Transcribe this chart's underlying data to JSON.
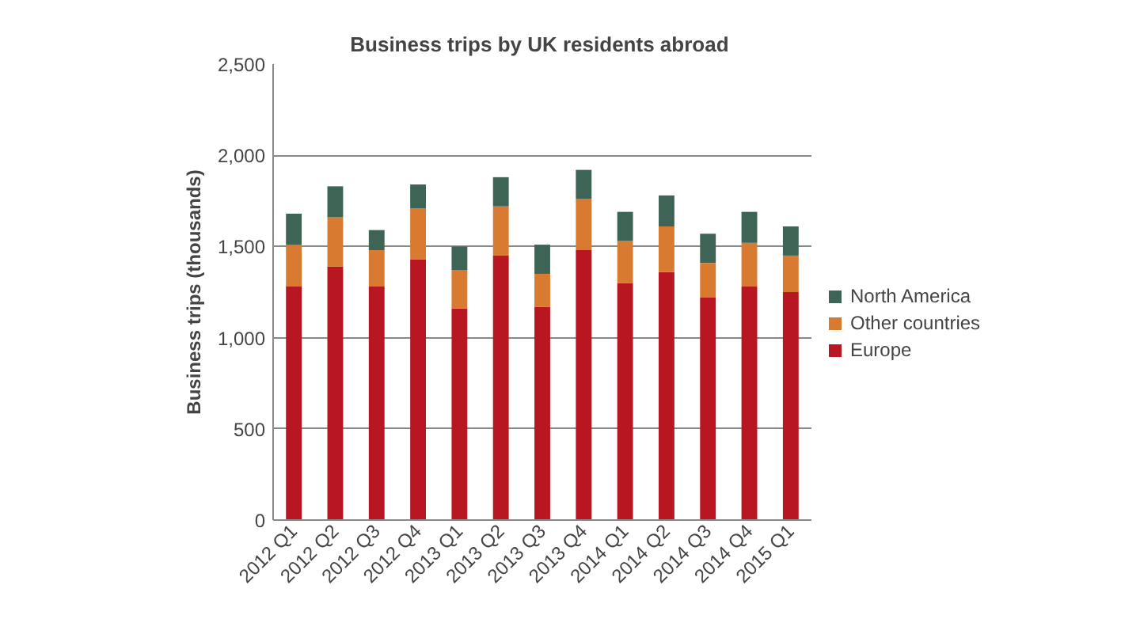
{
  "chart_data": {
    "type": "bar",
    "title": "Business trips  by UK residents abroad",
    "ylabel": "Business trips (thousands)",
    "categories": [
      "2012 Q1",
      "2012 Q2",
      "2012 Q3",
      "2012 Q4",
      "2013 Q1",
      "2013 Q2",
      "2013 Q3",
      "2013 Q4",
      "2014 Q1",
      "2014 Q2",
      "2014 Q3",
      "2014 Q4",
      "2015 Q1"
    ],
    "stacked": true,
    "series": [
      {
        "name": "Europe",
        "color": "#b81722",
        "values": [
          1280,
          1390,
          1280,
          1430,
          1160,
          1450,
          1170,
          1480,
          1300,
          1360,
          1220,
          1280,
          1250
        ]
      },
      {
        "name": "Other countries",
        "color": "#d97a31",
        "values": [
          230,
          270,
          200,
          280,
          210,
          270,
          180,
          280,
          230,
          250,
          190,
          240,
          200
        ]
      },
      {
        "name": "North America",
        "color": "#3e6455",
        "values": [
          170,
          170,
          110,
          130,
          130,
          160,
          160,
          160,
          160,
          170,
          160,
          170,
          160
        ]
      }
    ],
    "ylim": [
      0,
      2500
    ],
    "yticks": [
      {
        "value": 0,
        "label": "0"
      },
      {
        "value": 500,
        "label": "500"
      },
      {
        "value": 1000,
        "label": "1,000"
      },
      {
        "value": 1500,
        "label": "1,500"
      },
      {
        "value": 2000,
        "label": "2,000"
      },
      {
        "value": 2500,
        "label": "2,500"
      }
    ],
    "grid": "y",
    "legend": "right"
  }
}
